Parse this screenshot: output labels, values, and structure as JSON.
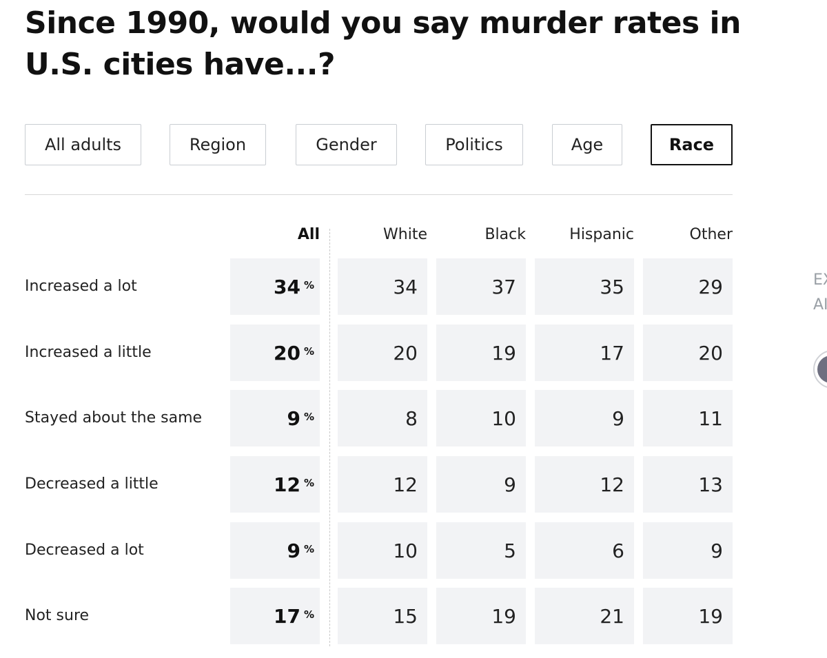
{
  "title": "Since 1990, would you say murder rates in U.S. cities have...?",
  "tabs": [
    {
      "label": "All adults",
      "active": false
    },
    {
      "label": "Region",
      "active": false
    },
    {
      "label": "Gender",
      "active": false
    },
    {
      "label": "Politics",
      "active": false
    },
    {
      "label": "Age",
      "active": false
    },
    {
      "label": "Race",
      "active": true
    }
  ],
  "table": {
    "columns": [
      "All",
      "White",
      "Black",
      "Hispanic",
      "Other"
    ],
    "percent_symbol": "%",
    "rows": [
      {
        "label": "Increased a lot",
        "all": "34",
        "white": "34",
        "black": "37",
        "hispanic": "35",
        "other": "29"
      },
      {
        "label": "Increased a little",
        "all": "20",
        "white": "20",
        "black": "19",
        "hispanic": "17",
        "other": "20"
      },
      {
        "label": "Stayed about the same",
        "all": "9",
        "white": "8",
        "black": "10",
        "hispanic": "9",
        "other": "11"
      },
      {
        "label": "Decreased a little",
        "all": "12",
        "white": "12",
        "black": "9",
        "hispanic": "12",
        "other": "13"
      },
      {
        "label": "Decreased a lot",
        "all": "9",
        "white": "10",
        "black": "5",
        "hispanic": "6",
        "other": "9"
      },
      {
        "label": "Not sure",
        "all": "17",
        "white": "15",
        "black": "19",
        "hispanic": "21",
        "other": "19"
      }
    ]
  },
  "side_panel": {
    "line1": "EX",
    "line2": "AI"
  },
  "colors": {
    "cell_background": "#f2f3f5",
    "tab_border": "#c9cdd2",
    "active_tab_border": "#111111"
  }
}
